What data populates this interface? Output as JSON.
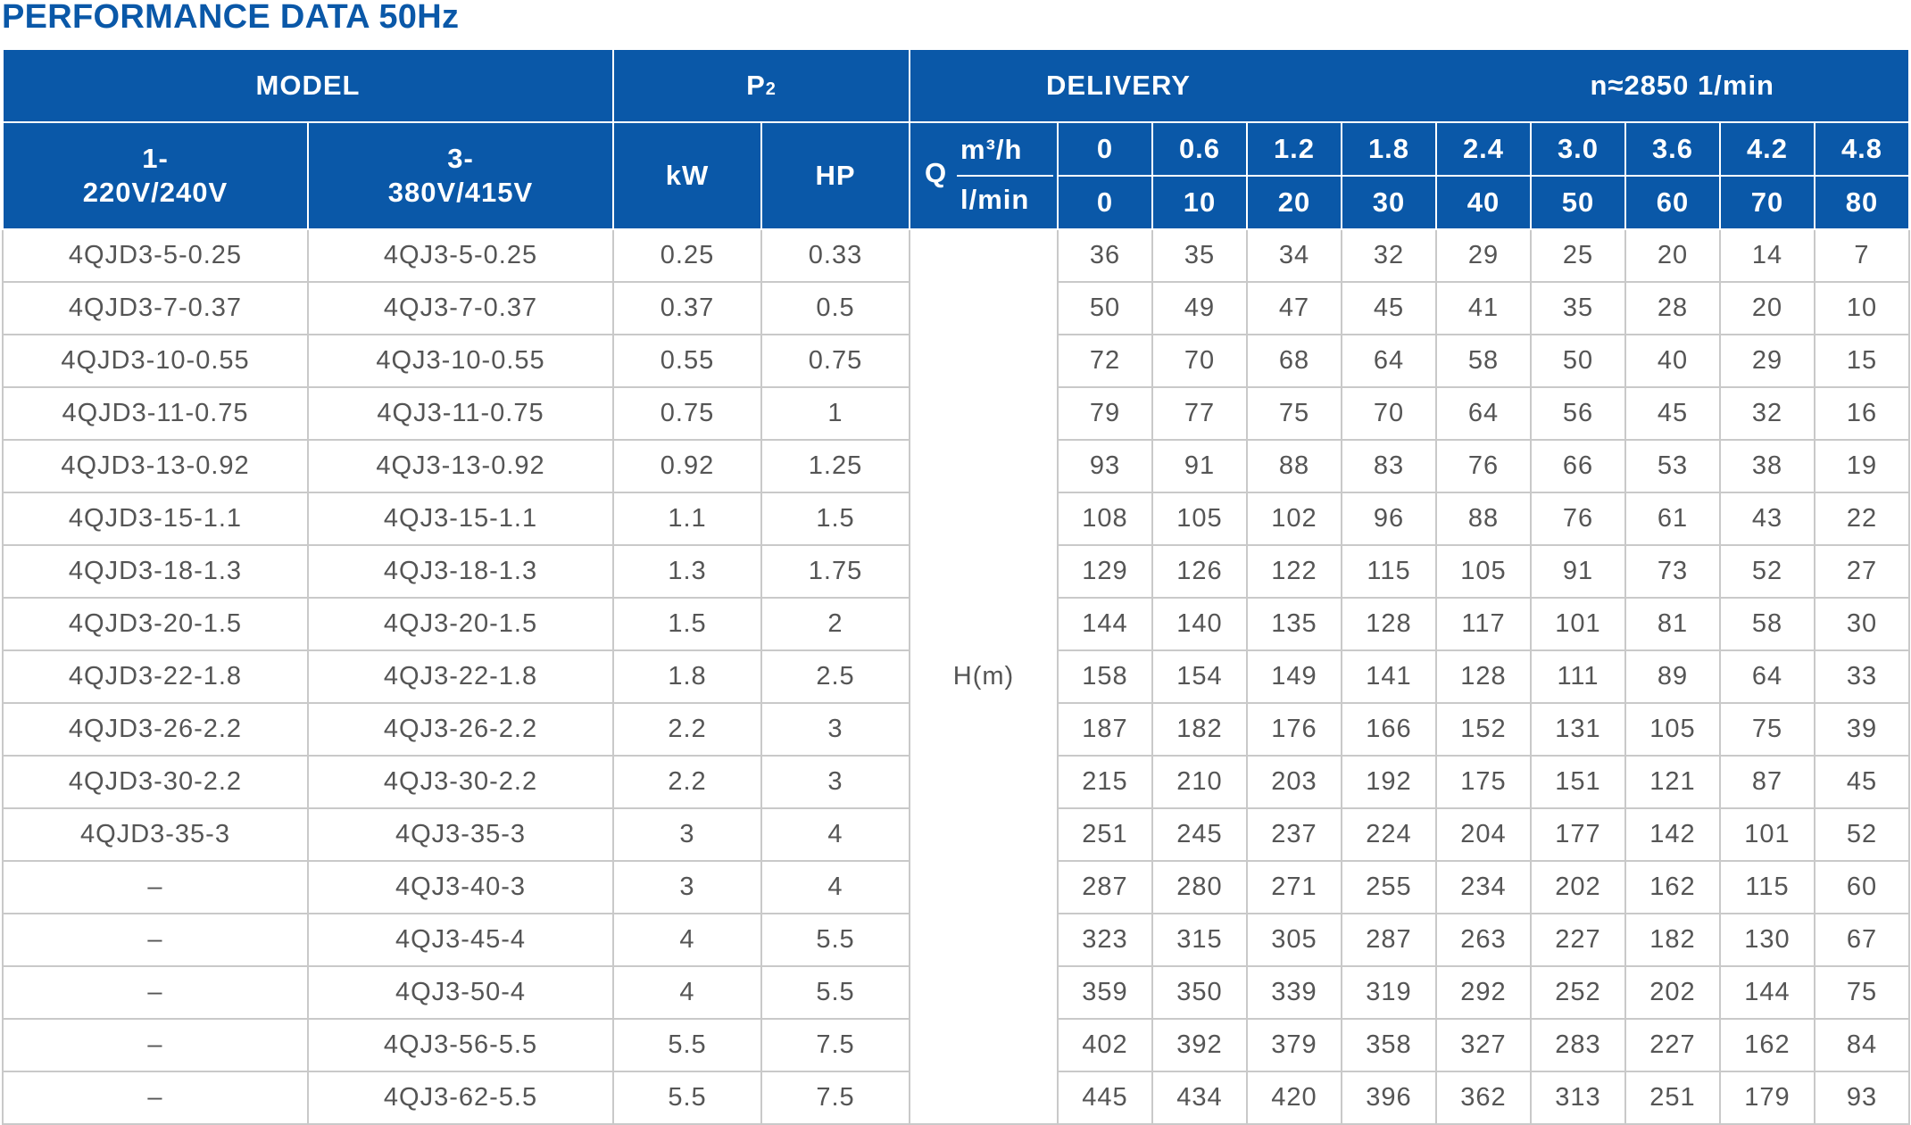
{
  "title": "PERFORMANCE DATA 50Hz",
  "header": {
    "model": "MODEL",
    "p2_main": "P",
    "p2_sub": "2",
    "delivery": "DELIVERY",
    "speed": "n≈2850  1/min",
    "phase1_line1": "1-",
    "phase1_line2": "220V/240V",
    "phase3_line1": "3-",
    "phase3_line2": "380V/415V",
    "kw": "kW",
    "hp": "HP",
    "q": "Q",
    "unit_m3h": "m³/h",
    "unit_lmin": "l/min",
    "head_label": "H(m)"
  },
  "flow_m3h": [
    "0",
    "0.6",
    "1.2",
    "1.8",
    "2.4",
    "3.0",
    "3.6",
    "4.2",
    "4.8"
  ],
  "flow_lmin": [
    "0",
    "10",
    "20",
    "30",
    "40",
    "50",
    "60",
    "70",
    "80"
  ],
  "rows": [
    {
      "m1": "4QJD3-5-0.25",
      "m3": "4QJ3-5-0.25",
      "kw": "0.25",
      "hp": "0.33",
      "h": [
        "36",
        "35",
        "34",
        "32",
        "29",
        "25",
        "20",
        "14",
        "7"
      ]
    },
    {
      "m1": "4QJD3-7-0.37",
      "m3": "4QJ3-7-0.37",
      "kw": "0.37",
      "hp": "0.5",
      "h": [
        "50",
        "49",
        "47",
        "45",
        "41",
        "35",
        "28",
        "20",
        "10"
      ]
    },
    {
      "m1": "4QJD3-10-0.55",
      "m3": "4QJ3-10-0.55",
      "kw": "0.55",
      "hp": "0.75",
      "h": [
        "72",
        "70",
        "68",
        "64",
        "58",
        "50",
        "40",
        "29",
        "15"
      ]
    },
    {
      "m1": "4QJD3-11-0.75",
      "m3": "4QJ3-11-0.75",
      "kw": "0.75",
      "hp": "1",
      "h": [
        "79",
        "77",
        "75",
        "70",
        "64",
        "56",
        "45",
        "32",
        "16"
      ]
    },
    {
      "m1": "4QJD3-13-0.92",
      "m3": "4QJ3-13-0.92",
      "kw": "0.92",
      "hp": "1.25",
      "h": [
        "93",
        "91",
        "88",
        "83",
        "76",
        "66",
        "53",
        "38",
        "19"
      ]
    },
    {
      "m1": "4QJD3-15-1.1",
      "m3": "4QJ3-15-1.1",
      "kw": "1.1",
      "hp": "1.5",
      "h": [
        "108",
        "105",
        "102",
        "96",
        "88",
        "76",
        "61",
        "43",
        "22"
      ]
    },
    {
      "m1": "4QJD3-18-1.3",
      "m3": "4QJ3-18-1.3",
      "kw": "1.3",
      "hp": "1.75",
      "h": [
        "129",
        "126",
        "122",
        "115",
        "105",
        "91",
        "73",
        "52",
        "27"
      ]
    },
    {
      "m1": "4QJD3-20-1.5",
      "m3": "4QJ3-20-1.5",
      "kw": "1.5",
      "hp": "2",
      "h": [
        "144",
        "140",
        "135",
        "128",
        "117",
        "101",
        "81",
        "58",
        "30"
      ]
    },
    {
      "m1": "4QJD3-22-1.8",
      "m3": "4QJ3-22-1.8",
      "kw": "1.8",
      "hp": "2.5",
      "h": [
        "158",
        "154",
        "149",
        "141",
        "128",
        "111",
        "89",
        "64",
        "33"
      ]
    },
    {
      "m1": "4QJD3-26-2.2",
      "m3": "4QJ3-26-2.2",
      "kw": "2.2",
      "hp": "3",
      "h": [
        "187",
        "182",
        "176",
        "166",
        "152",
        "131",
        "105",
        "75",
        "39"
      ]
    },
    {
      "m1": "4QJD3-30-2.2",
      "m3": "4QJ3-30-2.2",
      "kw": "2.2",
      "hp": "3",
      "h": [
        "215",
        "210",
        "203",
        "192",
        "175",
        "151",
        "121",
        "87",
        "45"
      ]
    },
    {
      "m1": "4QJD3-35-3",
      "m3": "4QJ3-35-3",
      "kw": "3",
      "hp": "4",
      "h": [
        "251",
        "245",
        "237",
        "224",
        "204",
        "177",
        "142",
        "101",
        "52"
      ]
    },
    {
      "m1": "–",
      "m3": "4QJ3-40-3",
      "kw": "3",
      "hp": "4",
      "h": [
        "287",
        "280",
        "271",
        "255",
        "234",
        "202",
        "162",
        "115",
        "60"
      ]
    },
    {
      "m1": "–",
      "m3": "4QJ3-45-4",
      "kw": "4",
      "hp": "5.5",
      "h": [
        "323",
        "315",
        "305",
        "287",
        "263",
        "227",
        "182",
        "130",
        "67"
      ]
    },
    {
      "m1": "–",
      "m3": "4QJ3-50-4",
      "kw": "4",
      "hp": "5.5",
      "h": [
        "359",
        "350",
        "339",
        "319",
        "292",
        "252",
        "202",
        "144",
        "75"
      ]
    },
    {
      "m1": "–",
      "m3": "4QJ3-56-5.5",
      "kw": "5.5",
      "hp": "7.5",
      "h": [
        "402",
        "392",
        "379",
        "358",
        "327",
        "283",
        "227",
        "162",
        "84"
      ]
    },
    {
      "m1": "–",
      "m3": "4QJ3-62-5.5",
      "kw": "5.5",
      "hp": "7.5",
      "h": [
        "445",
        "434",
        "420",
        "396",
        "362",
        "313",
        "251",
        "179",
        "93"
      ]
    }
  ]
}
